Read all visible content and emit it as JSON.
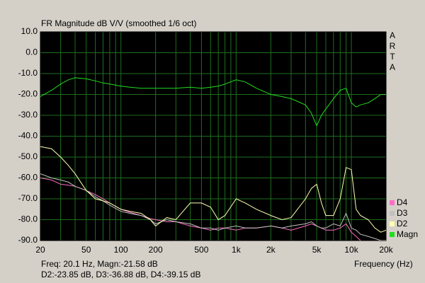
{
  "chart_data": {
    "type": "line",
    "title": "FR Magnitude dB V/V (smoothed 1/6 oct)",
    "brand_letters": [
      "A",
      "R",
      "T",
      "A"
    ],
    "xlabel": "Frequency (Hz)",
    "readout": [
      "Freq: 20.1 Hz, Magn:-21.58 dB",
      "D2:-23.85 dB, D3:-36.88 dB, D4:-39.15 dB"
    ],
    "xscale": "log",
    "grid": true,
    "grid_color": "#1e6e1e",
    "background": "#000000",
    "xlim": [
      20,
      20000
    ],
    "xticks": [
      20,
      50,
      100,
      200,
      500,
      {
        "value": 1000,
        "label": "1k"
      },
      {
        "value": 2000,
        "label": "2k"
      },
      {
        "value": 5000,
        "label": "5k"
      },
      {
        "value": 10000,
        "label": "10k"
      },
      {
        "value": 20000,
        "label": "20k"
      }
    ],
    "x_minor_grid": [
      30,
      40,
      60,
      70,
      80,
      90,
      300,
      400,
      600,
      700,
      800,
      900,
      3000,
      4000,
      6000,
      7000,
      8000,
      9000
    ],
    "ylim": [
      -90,
      10
    ],
    "yticks": [
      {
        "value": 10,
        "label": "10.0"
      },
      {
        "value": 0,
        "label": "0.0"
      },
      {
        "value": -10,
        "label": "-10.0"
      },
      {
        "value": -20,
        "label": "-20.0"
      },
      {
        "value": -30,
        "label": "-30.0"
      },
      {
        "value": -40,
        "label": "-40.0"
      },
      {
        "value": -50,
        "label": "-50.0"
      },
      {
        "value": -60,
        "label": "-60.0"
      },
      {
        "value": -70,
        "label": "-70.0"
      },
      {
        "value": -80,
        "label": "-80.0"
      },
      {
        "value": -90,
        "label": "-90.0"
      }
    ],
    "legend_position": "lower right outside",
    "x": [
      20,
      25,
      30,
      35,
      40,
      50,
      60,
      70,
      80,
      100,
      120,
      150,
      180,
      200,
      250,
      300,
      400,
      500,
      600,
      700,
      800,
      1000,
      1200,
      1500,
      2000,
      2500,
      3000,
      4000,
      4500,
      5000,
      5500,
      6000,
      7000,
      8000,
      9000,
      10000,
      11000,
      12000,
      14000,
      16000,
      18000,
      20000
    ],
    "series": [
      {
        "name": "D4",
        "color": "#ff6ec7",
        "values": [
          -60,
          -61,
          -63,
          -63.5,
          -64,
          -66,
          -68,
          -70,
          -72,
          -75,
          -76.5,
          -78,
          -79.5,
          -80,
          -81,
          -81,
          -83,
          -84,
          -85,
          -84,
          -84,
          -85,
          -84,
          -84,
          -83,
          -84,
          -85,
          -83,
          -82,
          -83,
          -84,
          -85,
          -85,
          -84,
          -82,
          -86,
          -88,
          -90,
          null,
          null,
          null,
          null
        ]
      },
      {
        "name": "D3",
        "color": "#c0c0c0",
        "values": [
          -58,
          -60,
          -61,
          -62,
          -64,
          -66,
          -69,
          -71,
          -73,
          -76,
          -77,
          -78,
          -80,
          -82,
          -80,
          -81,
          -82,
          -84,
          -84,
          -85,
          -84,
          -83,
          -84,
          -84,
          -83,
          -84,
          -83,
          -82,
          -81,
          -83,
          -84,
          -84,
          -82,
          -83,
          -77,
          -84,
          -85,
          -87,
          -88,
          -89,
          -90,
          -90
        ]
      },
      {
        "name": "D2",
        "color": "#ffffb0",
        "values": [
          -45,
          -46,
          -50,
          -54,
          -58,
          -66,
          -70,
          -71,
          -72,
          -75,
          -76,
          -77,
          -80,
          -83,
          -79,
          -80,
          -72,
          -72,
          -74,
          -80,
          -78,
          -70,
          -72,
          -75,
          -78,
          -80,
          -79,
          -70,
          -65,
          -63,
          -72,
          -78,
          -78,
          -70,
          -55,
          -56,
          -75,
          -78,
          -80,
          -84,
          -86,
          -85
        ]
      },
      {
        "name": "Magn",
        "color": "#22dd22",
        "values": [
          -21,
          -18,
          -15,
          -13,
          -12,
          -12.5,
          -13.5,
          -14.5,
          -15,
          -16,
          -16.5,
          -17,
          -17,
          -17,
          -17,
          -17,
          -16.5,
          -17,
          -16.5,
          -16,
          -15,
          -13,
          -14,
          -17,
          -20,
          -21,
          -22,
          -25,
          -29,
          -35,
          -30,
          -27,
          -22,
          -18,
          -17,
          -24,
          -26,
          -25,
          -24,
          -22,
          -20,
          -20
        ]
      }
    ]
  }
}
